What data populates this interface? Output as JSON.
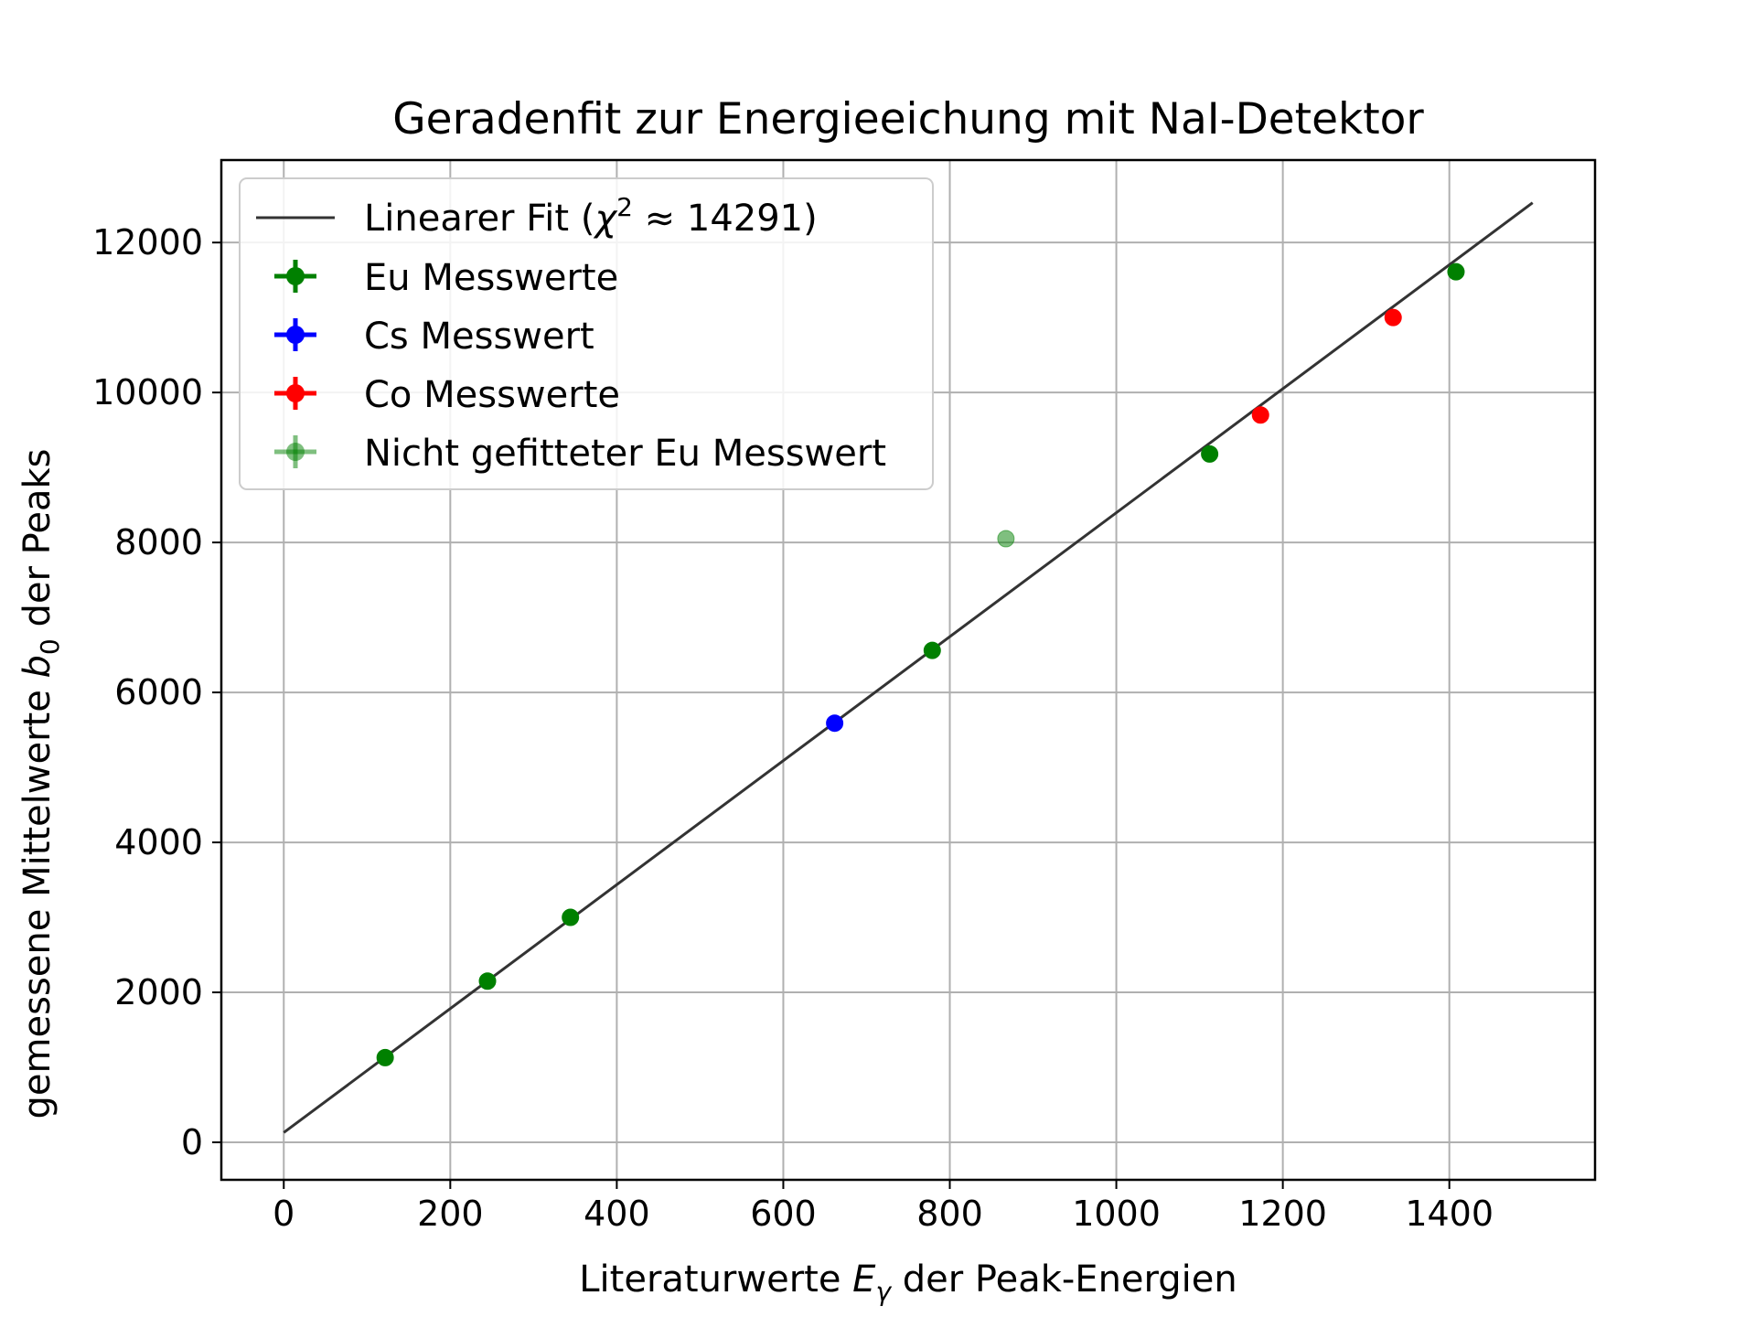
{
  "chart_data": {
    "type": "scatter",
    "title": "Geradenfit zur Energieeichung mit NaI-Detektor",
    "xlabel": "Literaturwerte E_γ der Peak-Energien",
    "ylabel": "gemessene Mittelwerte b_0 der Peaks",
    "xlabel_parts": {
      "pre": "Literaturwerte ",
      "sym": "E",
      "sub": "γ",
      "post": " der Peak-Energien"
    },
    "ylabel_parts": {
      "pre": "gemessene Mittelwerte ",
      "sym": "b",
      "sub": "0",
      "post": " der Peaks"
    },
    "xlim": [
      -75,
      1575
    ],
    "ylim": [
      -500,
      13100
    ],
    "xticks": [
      0,
      200,
      400,
      600,
      800,
      1000,
      1200,
      1400
    ],
    "yticks": [
      0,
      2000,
      4000,
      6000,
      8000,
      10000,
      12000
    ],
    "grid": true,
    "legend_position": "upper left",
    "fit": {
      "name": "Linearer Fit",
      "chi2_label": "χ",
      "chi2_exp": "2",
      "chi2_value": "≈ 14291",
      "x": [
        0,
        1500
      ],
      "y": [
        130,
        12530
      ],
      "color": "#333333"
    },
    "series": [
      {
        "name": "Eu Messwerte",
        "color": "#008000",
        "alpha": 1,
        "x": [
          121.8,
          244.7,
          344.3,
          778.9,
          1112.1,
          1408.0
        ],
        "y": [
          1130,
          2150,
          3000,
          6560,
          9180,
          11610
        ]
      },
      {
        "name": "Cs Messwert",
        "color": "#0000ff",
        "alpha": 1,
        "x": [
          661.7
        ],
        "y": [
          5590
        ]
      },
      {
        "name": "Co Messwerte",
        "color": "#ff0000",
        "alpha": 1,
        "x": [
          1173.2,
          1332.5
        ],
        "y": [
          9700,
          11000
        ]
      },
      {
        "name": "Nicht gefitteter Eu Messwert",
        "color": "#008000",
        "alpha": 0.5,
        "x": [
          867.4
        ],
        "y": [
          8050
        ]
      }
    ]
  }
}
